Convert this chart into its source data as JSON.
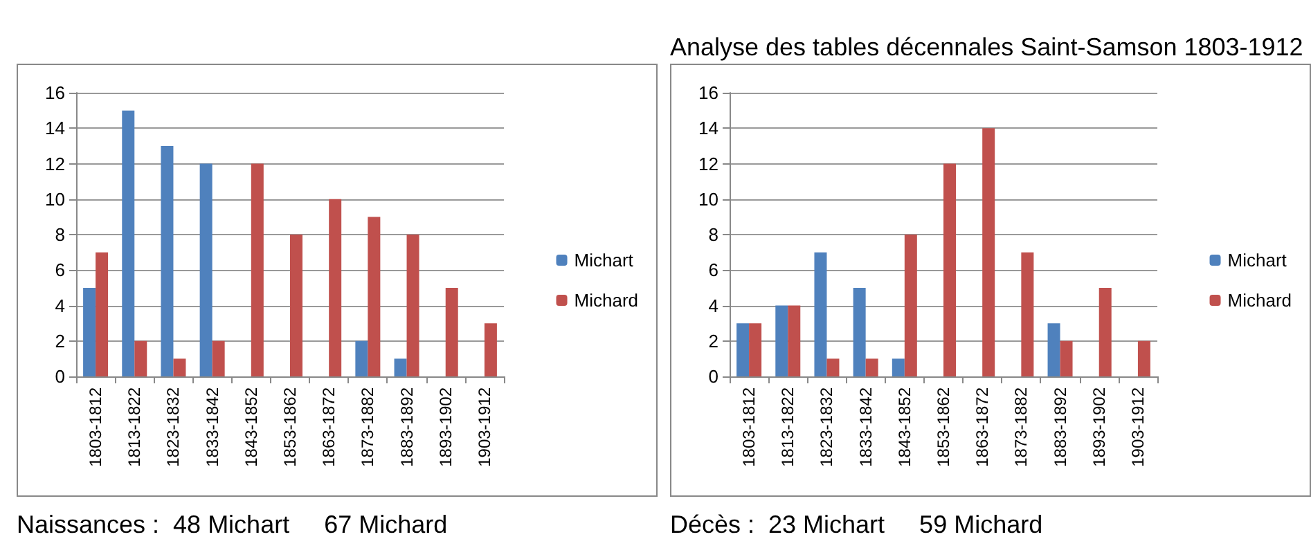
{
  "chart_data": [
    {
      "type": "bar",
      "categories": [
        "1803-1812",
        "1813-1822",
        "1823-1832",
        "1833-1842",
        "1843-1852",
        "1853-1862",
        "1863-1872",
        "1873-1882",
        "1883-1892",
        "1893-1902",
        "1903-1912"
      ],
      "series": [
        {
          "name": "Michart",
          "color": "#4f81bd",
          "values": [
            5,
            15,
            13,
            12,
            0,
            0,
            0,
            2,
            1,
            0,
            0
          ]
        },
        {
          "name": "Michard",
          "color": "#c0504d",
          "values": [
            7,
            2,
            1,
            2,
            12,
            8,
            10,
            9,
            8,
            5,
            3
          ]
        }
      ],
      "ylim": [
        0,
        16
      ],
      "yticks": [
        0,
        2,
        4,
        6,
        8,
        10,
        12,
        14,
        16
      ],
      "grid": "y",
      "legend": "right",
      "annotations": [
        "Naissances :  48 Michart     67 Michard"
      ]
    },
    {
      "type": "bar",
      "title": "Analyse des tables décennales Saint-Samson 1803-1912",
      "categories": [
        "1803-1812",
        "1813-1822",
        "1823-1832",
        "1833-1842",
        "1843-1852",
        "1853-1862",
        "1863-1872",
        "1873-1882",
        "1883-1892",
        "1893-1902",
        "1903-1912"
      ],
      "series": [
        {
          "name": "Michart",
          "color": "#4f81bd",
          "values": [
            3,
            4,
            7,
            5,
            1,
            0,
            0,
            0,
            3,
            0,
            0
          ]
        },
        {
          "name": "Michard",
          "color": "#c0504d",
          "values": [
            3,
            4,
            1,
            1,
            8,
            12,
            14,
            7,
            2,
            5,
            2
          ]
        }
      ],
      "ylim": [
        0,
        16
      ],
      "yticks": [
        0,
        2,
        4,
        6,
        8,
        10,
        12,
        14,
        16
      ],
      "grid": "y",
      "legend": "right",
      "annotations": [
        "Décès :  23 Michart     59 Michard"
      ]
    }
  ]
}
